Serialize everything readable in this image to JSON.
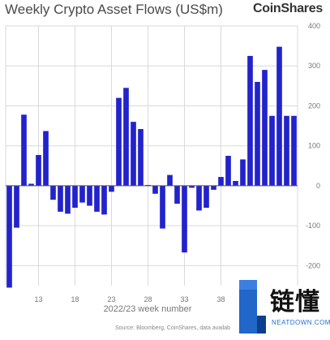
{
  "chart_data": {
    "type": "bar",
    "title": "Weekly Crypto Asset Flows (US$m)",
    "xlabel": "2022/23 week number",
    "ylabel": "",
    "ylim": [
      -250,
      400
    ],
    "yticks": [
      -200,
      -100,
      0,
      100,
      200,
      300,
      400
    ],
    "grid": true,
    "bar_color": "#2323cc",
    "x_tick_labels": [
      {
        "week": 13,
        "label": "13"
      },
      {
        "week": 18,
        "label": "18"
      },
      {
        "week": 23,
        "label": "23"
      },
      {
        "week": 28,
        "label": "28"
      },
      {
        "week": 33,
        "label": "33"
      },
      {
        "week": 38,
        "label": "38"
      }
    ],
    "series": [
      {
        "x": [
          9,
          10,
          11,
          12,
          13,
          14,
          15,
          16,
          17,
          18,
          19,
          20,
          21,
          22,
          23,
          24,
          25,
          26,
          27,
          28,
          29,
          30,
          31,
          32,
          33,
          34,
          35,
          36,
          37,
          38,
          39,
          40,
          41,
          42,
          43,
          44,
          45,
          46,
          47,
          48
        ],
        "values": [
          -255,
          -105,
          178,
          5,
          77,
          137,
          -35,
          -65,
          -70,
          -55,
          -42,
          -50,
          -65,
          -72,
          -15,
          220,
          245,
          160,
          142,
          2,
          -20,
          -107,
          27,
          -45,
          -167,
          -5,
          -62,
          -55,
          -10,
          22,
          75,
          12,
          66,
          325,
          260,
          290,
          175,
          348,
          175,
          175
        ]
      }
    ]
  },
  "watermark": {
    "chinese_text": "链懂",
    "english_text": "NEATDOWN.COM"
  },
  "logo": {
    "brand": "CoinShares"
  },
  "source_note": "Source: Bloomberg, CoinShares, data availab"
}
